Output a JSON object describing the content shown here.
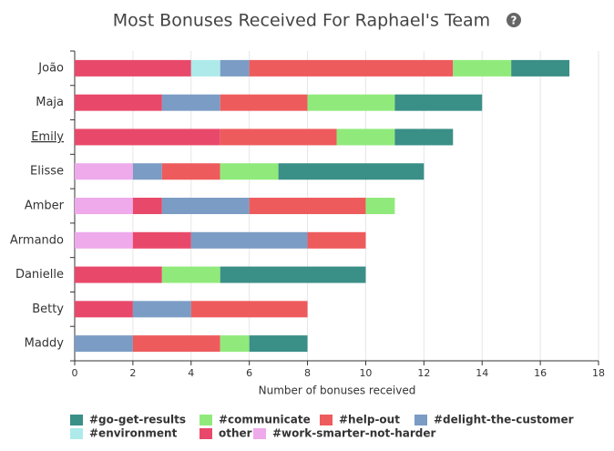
{
  "chart_data": {
    "type": "bar",
    "orientation": "horizontal",
    "stacked": true,
    "title": "Most Bonuses Received For Raphael's Team",
    "x_label": "Number of bonuses received",
    "categories": [
      "João",
      "Maja",
      "Emily",
      "Elisse",
      "Amber",
      "Armando",
      "Danielle",
      "Betty",
      "Maddy"
    ],
    "xlim": [
      0,
      18
    ],
    "xticks": [
      0,
      2,
      4,
      6,
      8,
      10,
      12,
      14,
      16,
      18
    ],
    "grid": true,
    "series": [
      {
        "name": "#go-get-results",
        "color": "#3a8f87",
        "values": [
          2,
          3,
          2,
          5,
          null,
          null,
          5,
          null,
          2
        ]
      },
      {
        "name": "#communicate",
        "color": "#90ea7b",
        "values": [
          2,
          3,
          2,
          2,
          1,
          null,
          2,
          null,
          1
        ]
      },
      {
        "name": "#help-out",
        "color": "#ee5b5d",
        "values": [
          7,
          3,
          4,
          2,
          4,
          2,
          null,
          4,
          3
        ]
      },
      {
        "name": "#delight-the-customer",
        "color": "#7b9cc4",
        "values": [
          1,
          2,
          null,
          1,
          3,
          4,
          null,
          2,
          2
        ]
      },
      {
        "name": "#environment",
        "color": "#aeeaea",
        "values": [
          1,
          null,
          null,
          null,
          null,
          null,
          null,
          null,
          null
        ]
      },
      {
        "name": "other",
        "color": "#e8496a",
        "values": [
          4,
          3,
          5,
          null,
          1,
          2,
          3,
          2,
          null
        ]
      },
      {
        "name": "#work-smarter-not-harder",
        "color": "#eeaaea",
        "values": [
          null,
          null,
          null,
          2,
          2,
          2,
          null,
          null,
          null
        ]
      }
    ]
  }
}
